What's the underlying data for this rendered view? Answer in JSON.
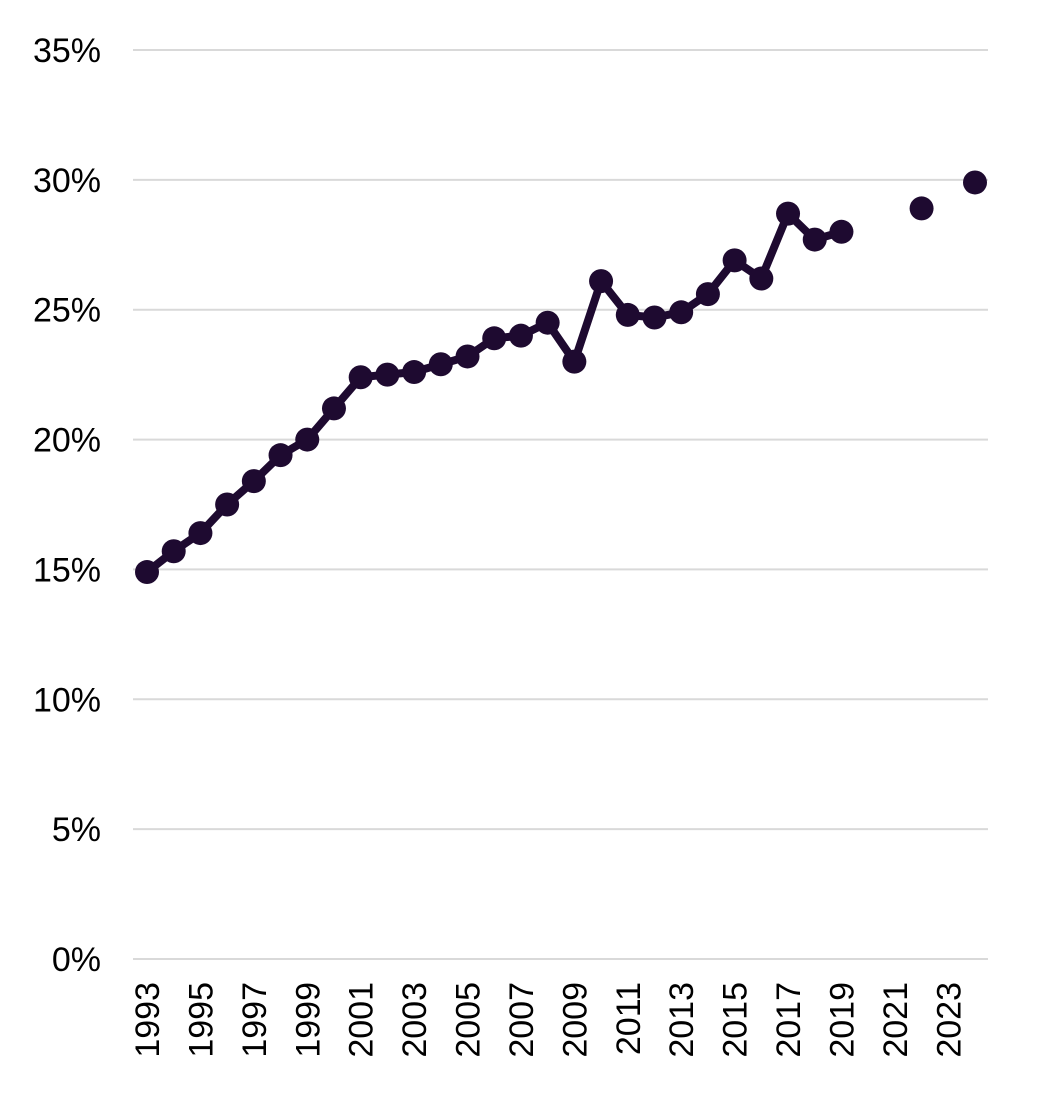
{
  "chart_data": {
    "type": "line",
    "title": "",
    "xlabel": "",
    "ylabel": "",
    "x": [
      1993,
      1994,
      1995,
      1996,
      1997,
      1998,
      1999,
      2000,
      2001,
      2002,
      2003,
      2004,
      2005,
      2006,
      2007,
      2008,
      2009,
      2010,
      2011,
      2012,
      2013,
      2014,
      2015,
      2016,
      2017,
      2018,
      2019,
      2020,
      2021,
      2022,
      2023,
      2024
    ],
    "series": [
      {
        "values": [
          14.9,
          15.7,
          16.4,
          17.5,
          18.4,
          19.4,
          20.0,
          21.2,
          22.4,
          22.5,
          22.6,
          22.9,
          23.2,
          23.9,
          24.0,
          24.5,
          23.0,
          26.1,
          24.8,
          24.7,
          24.9,
          25.6,
          26.9,
          26.2,
          28.7,
          27.7,
          28.0,
          null,
          null,
          28.9,
          null,
          29.9
        ],
        "color": "#1e0a30"
      }
    ],
    "xlim": [
      1993,
      2024
    ],
    "ylim": [
      0,
      35
    ],
    "y_ticks": [
      {
        "value": 0,
        "label": "0%"
      },
      {
        "value": 5,
        "label": "5%"
      },
      {
        "value": 10,
        "label": "10%"
      },
      {
        "value": 15,
        "label": "15%"
      },
      {
        "value": 20,
        "label": "20%"
      },
      {
        "value": 25,
        "label": "25%"
      },
      {
        "value": 30,
        "label": "30%"
      },
      {
        "value": 35,
        "label": "35%"
      }
    ],
    "x_ticks": [
      {
        "value": 1993,
        "label": "1993"
      },
      {
        "value": 1995,
        "label": "1995"
      },
      {
        "value": 1997,
        "label": "1997"
      },
      {
        "value": 1999,
        "label": "1999"
      },
      {
        "value": 2001,
        "label": "2001"
      },
      {
        "value": 2003,
        "label": "2003"
      },
      {
        "value": 2005,
        "label": "2005"
      },
      {
        "value": 2007,
        "label": "2007"
      },
      {
        "value": 2009,
        "label": "2009"
      },
      {
        "value": 2011,
        "label": "2011"
      },
      {
        "value": 2013,
        "label": "2013"
      },
      {
        "value": 2015,
        "label": "2015"
      },
      {
        "value": 2017,
        "label": "2017"
      },
      {
        "value": 2019,
        "label": "2019"
      },
      {
        "value": 2021,
        "label": "2021"
      },
      {
        "value": 2023,
        "label": "2023"
      }
    ],
    "grid": true,
    "legend": "none",
    "gridline_color": "#d9d9d9"
  }
}
